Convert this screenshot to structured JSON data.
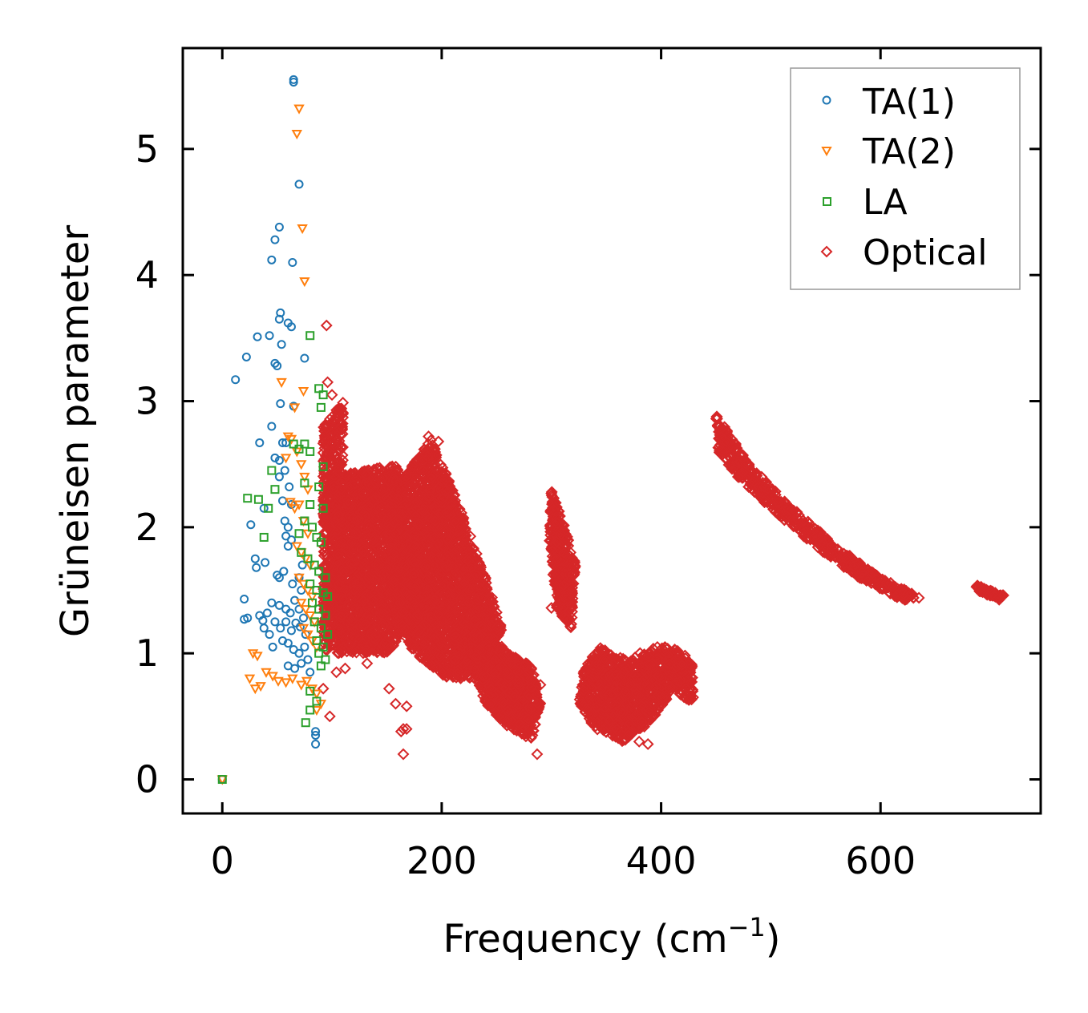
{
  "chart_data": {
    "type": "scatter",
    "xlabel": "Frequency (cm",
    "xlabel_sup": "−1",
    "xlabel_close": ")",
    "ylabel": "Grüneisen parameter",
    "xlim": [
      -36,
      746
    ],
    "ylim": [
      -0.27,
      5.8
    ],
    "xticks": [
      0,
      200,
      400,
      600
    ],
    "xtick_labels": [
      "0",
      "200",
      "400",
      "600"
    ],
    "yticks": [
      0,
      1,
      2,
      3,
      4,
      5
    ],
    "ytick_labels": [
      "0",
      "1",
      "2",
      "3",
      "4",
      "5"
    ],
    "grid": false,
    "legend_position": "top-right",
    "series": [
      {
        "name": "TA(1)",
        "marker": "circle",
        "color": "#1f77b4",
        "points": [
          [
            0,
            0
          ],
          [
            12,
            3.17
          ],
          [
            22,
            3.35
          ],
          [
            32,
            3.51
          ],
          [
            43,
            3.52
          ],
          [
            52,
            3.65
          ],
          [
            53,
            3.7
          ],
          [
            60,
            3.62
          ],
          [
            63,
            3.59
          ],
          [
            54,
            3.45
          ],
          [
            48,
            3.3
          ],
          [
            50,
            3.28
          ],
          [
            75,
            3.34
          ],
          [
            65,
            2.96
          ],
          [
            53,
            2.98
          ],
          [
            45,
            2.8
          ],
          [
            34,
            2.67
          ],
          [
            55,
            2.67
          ],
          [
            58,
            2.67
          ],
          [
            48,
            2.55
          ],
          [
            52,
            2.53
          ],
          [
            57,
            2.45
          ],
          [
            52,
            2.4
          ],
          [
            61,
            2.32
          ],
          [
            55,
            2.21
          ],
          [
            63,
            2.18
          ],
          [
            38,
            2.15
          ],
          [
            26,
            2.02
          ],
          [
            57,
            2.05
          ],
          [
            60,
            2.0
          ],
          [
            58,
            1.93
          ],
          [
            63,
            1.9
          ],
          [
            60,
            1.85
          ],
          [
            30,
            1.75
          ],
          [
            31,
            1.68
          ],
          [
            39,
            1.72
          ],
          [
            50,
            1.62
          ],
          [
            52,
            1.6
          ],
          [
            56,
            1.65
          ],
          [
            64,
            1.55
          ],
          [
            70,
            1.6
          ],
          [
            72,
            1.5
          ],
          [
            73,
            1.7
          ],
          [
            20,
            1.43
          ],
          [
            45,
            1.4
          ],
          [
            52,
            1.38
          ],
          [
            58,
            1.35
          ],
          [
            62,
            1.32
          ],
          [
            66,
            1.42
          ],
          [
            70,
            1.35
          ],
          [
            74,
            1.28
          ],
          [
            20,
            1.27
          ],
          [
            23,
            1.28
          ],
          [
            34,
            1.3
          ],
          [
            37,
            1.26
          ],
          [
            41,
            1.32
          ],
          [
            48,
            1.25
          ],
          [
            53,
            1.2
          ],
          [
            58,
            1.25
          ],
          [
            63,
            1.18
          ],
          [
            67,
            1.24
          ],
          [
            71,
            1.21
          ],
          [
            76,
            1.15
          ],
          [
            38,
            1.2
          ],
          [
            43,
            1.15
          ],
          [
            46,
            1.05
          ],
          [
            55,
            1.1
          ],
          [
            60,
            1.08
          ],
          [
            65,
            1.03
          ],
          [
            70,
            1.0
          ],
          [
            75,
            1.05
          ],
          [
            78,
            0.95
          ],
          [
            60,
            0.9
          ],
          [
            66,
            0.88
          ],
          [
            72,
            0.92
          ],
          [
            80,
            0.85
          ],
          [
            85,
            0.38
          ],
          [
            85,
            0.35
          ],
          [
            85,
            0.28
          ],
          [
            65,
            5.55
          ],
          [
            65,
            5.53
          ],
          [
            70,
            4.72
          ],
          [
            52,
            4.38
          ],
          [
            48,
            4.28
          ],
          [
            45,
            4.12
          ],
          [
            64,
            4.1
          ]
        ]
      },
      {
        "name": "TA(2)",
        "marker": "triangle",
        "color": "#ff7f0e",
        "points": [
          [
            0,
            0
          ],
          [
            70,
            5.32
          ],
          [
            68,
            5.12
          ],
          [
            73,
            4.37
          ],
          [
            75,
            3.95
          ],
          [
            54,
            3.15
          ],
          [
            74,
            3.08
          ],
          [
            66,
            2.95
          ],
          [
            60,
            2.72
          ],
          [
            63,
            2.7
          ],
          [
            58,
            2.55
          ],
          [
            68,
            2.6
          ],
          [
            72,
            2.5
          ],
          [
            75,
            2.4
          ],
          [
            78,
            2.3
          ],
          [
            62,
            2.2
          ],
          [
            66,
            2.15
          ],
          [
            70,
            2.18
          ],
          [
            74,
            2.05
          ],
          [
            78,
            1.95
          ],
          [
            68,
            1.85
          ],
          [
            72,
            1.8
          ],
          [
            76,
            1.75
          ],
          [
            80,
            1.7
          ],
          [
            70,
            1.6
          ],
          [
            74,
            1.55
          ],
          [
            78,
            1.5
          ],
          [
            82,
            1.45
          ],
          [
            72,
            1.4
          ],
          [
            76,
            1.35
          ],
          [
            80,
            1.3
          ],
          [
            84,
            1.25
          ],
          [
            74,
            1.2
          ],
          [
            78,
            1.15
          ],
          [
            82,
            1.1
          ],
          [
            86,
            1.05
          ],
          [
            28,
            1.0
          ],
          [
            32,
            0.98
          ],
          [
            40,
            0.85
          ],
          [
            46,
            0.82
          ],
          [
            51,
            0.78
          ],
          [
            58,
            0.77
          ],
          [
            64,
            0.8
          ],
          [
            72,
            0.75
          ],
          [
            77,
            0.78
          ],
          [
            82,
            0.72
          ],
          [
            86,
            0.68
          ],
          [
            90,
            0.6
          ],
          [
            86,
            0.55
          ],
          [
            25,
            0.8
          ],
          [
            30,
            0.72
          ],
          [
            35,
            0.74
          ]
        ]
      },
      {
        "name": "LA",
        "marker": "square",
        "color": "#2ca02c",
        "points": [
          [
            0,
            0
          ],
          [
            80,
            3.52
          ],
          [
            88,
            3.1
          ],
          [
            92,
            3.05
          ],
          [
            90,
            2.95
          ],
          [
            65,
            2.66
          ],
          [
            70,
            2.62
          ],
          [
            75,
            2.66
          ],
          [
            80,
            2.6
          ],
          [
            92,
            2.48
          ],
          [
            45,
            2.45
          ],
          [
            75,
            2.35
          ],
          [
            88,
            2.32
          ],
          [
            48,
            2.3
          ],
          [
            23,
            2.23
          ],
          [
            33,
            2.22
          ],
          [
            42,
            2.15
          ],
          [
            80,
            2.18
          ],
          [
            92,
            2.15
          ],
          [
            75,
            2.05
          ],
          [
            82,
            2.0
          ],
          [
            70,
            1.95
          ],
          [
            86,
            1.92
          ],
          [
            90,
            1.88
          ],
          [
            38,
            1.92
          ],
          [
            72,
            1.8
          ],
          [
            78,
            1.75
          ],
          [
            84,
            1.7
          ],
          [
            88,
            1.65
          ],
          [
            94,
            1.6
          ],
          [
            80,
            1.55
          ],
          [
            86,
            1.5
          ],
          [
            92,
            1.48
          ],
          [
            96,
            1.45
          ],
          [
            82,
            1.4
          ],
          [
            88,
            1.35
          ],
          [
            94,
            1.3
          ],
          [
            84,
            1.25
          ],
          [
            90,
            1.2
          ],
          [
            96,
            1.15
          ],
          [
            86,
            1.1
          ],
          [
            92,
            1.05
          ],
          [
            88,
            1.0
          ],
          [
            94,
            0.95
          ],
          [
            90,
            0.9
          ],
          [
            80,
            0.7
          ],
          [
            80,
            0.55
          ],
          [
            76,
            0.45
          ],
          [
            86,
            0.62
          ]
        ]
      },
      {
        "name": "Optical",
        "marker": "diamond",
        "color": "#d62728",
        "note": "dense clusters: points per band are generated over the listed frequency / Grüneisen ranges",
        "bands": [
          [
            [
              92,
              2.8
            ],
            [
              110,
              3.0
            ],
            [
              110,
              1.1
            ],
            [
              92,
              1.0
            ]
          ],
          [
            [
              100,
              2.4
            ],
            [
              160,
              2.5
            ],
            [
              180,
              1.3
            ],
            [
              150,
              1.0
            ],
            [
              105,
              1.0
            ]
          ],
          [
            [
              150,
              2.2
            ],
            [
              190,
              2.7
            ],
            [
              215,
              2.2
            ],
            [
              240,
              1.6
            ],
            [
              255,
              1.2
            ],
            [
              235,
              0.8
            ],
            [
              205,
              0.8
            ],
            [
              175,
              1.0
            ],
            [
              155,
              1.3
            ]
          ],
          [
            [
              230,
              1.3
            ],
            [
              260,
              1.0
            ],
            [
              282,
              0.9
            ],
            [
              290,
              0.6
            ],
            [
              282,
              0.3
            ],
            [
              262,
              0.4
            ],
            [
              240,
              0.6
            ],
            [
              228,
              0.9
            ]
          ],
          [
            [
              300,
              2.3
            ],
            [
              312,
              2.0
            ],
            [
              322,
              1.7
            ],
            [
              318,
              1.2
            ],
            [
              305,
              1.35
            ],
            [
              298,
              1.9
            ]
          ],
          [
            [
              330,
              0.9
            ],
            [
              345,
              1.05
            ],
            [
              368,
              0.95
            ],
            [
              392,
              1.05
            ],
            [
              410,
              1.05
            ],
            [
              428,
              0.95
            ],
            [
              430,
              0.6
            ],
            [
              410,
              0.7
            ],
            [
              390,
              0.45
            ],
            [
              365,
              0.3
            ],
            [
              340,
              0.4
            ],
            [
              325,
              0.6
            ]
          ],
          [
            [
              450,
              2.9
            ],
            [
              480,
              2.5
            ],
            [
              520,
              2.15
            ],
            [
              560,
              1.85
            ],
            [
              600,
              1.6
            ],
            [
              635,
              1.45
            ],
            [
              620,
              1.42
            ],
            [
              580,
              1.6
            ],
            [
              540,
              1.85
            ],
            [
              500,
              2.15
            ],
            [
              470,
              2.4
            ],
            [
              452,
              2.6
            ]
          ],
          [
            [
              685,
              1.55
            ],
            [
              712,
              1.46
            ],
            [
              708,
              1.42
            ],
            [
              688,
              1.5
            ]
          ]
        ],
        "points": [
          [
            95,
            3.6
          ],
          [
            96,
            3.15
          ],
          [
            100,
            3.05
          ],
          [
            110,
            2.9
          ],
          [
            165,
            0.4
          ],
          [
            168,
            0.4
          ],
          [
            165,
            0.2
          ],
          [
            163,
            0.38
          ],
          [
            188,
            2.72
          ],
          [
            197,
            2.68
          ],
          [
            287,
            0.2
          ],
          [
            290,
            0.75
          ],
          [
            300,
            1.36
          ],
          [
            380,
            0.3
          ],
          [
            388,
            0.28
          ],
          [
            635,
            1.44
          ],
          [
            712,
            1.46
          ],
          [
            104,
            0.85
          ],
          [
            112,
            0.88
          ],
          [
            132,
            0.92
          ],
          [
            152,
            0.72
          ],
          [
            158,
            0.6
          ],
          [
            168,
            0.58
          ],
          [
            180,
            0.98
          ],
          [
            260,
            0.85
          ],
          [
            98,
            0.5
          ],
          [
            92,
            0.72
          ]
        ]
      }
    ]
  }
}
